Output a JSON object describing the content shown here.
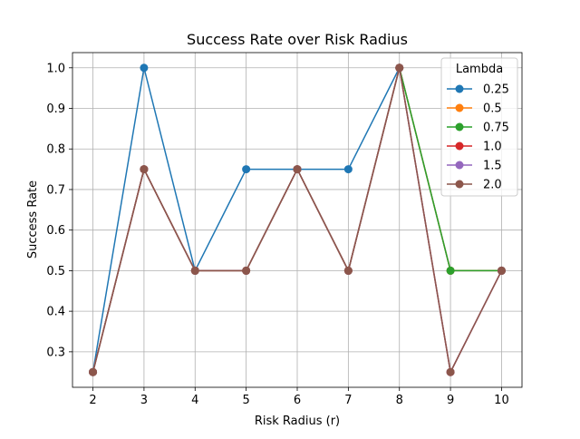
{
  "chart_data": {
    "type": "line",
    "title": "Success Rate over Risk Radius",
    "xlabel": "Risk Radius (r)",
    "ylabel": "Success Rate",
    "x": [
      2,
      3,
      4,
      5,
      6,
      7,
      8,
      9,
      10
    ],
    "xlim": [
      1.6,
      10.4
    ],
    "ylim": [
      0.2125,
      1.0375
    ],
    "xticks": [
      "2",
      "3",
      "4",
      "5",
      "6",
      "7",
      "8",
      "9",
      "10"
    ],
    "yticks": [
      "0.3",
      "0.4",
      "0.5",
      "0.6",
      "0.7",
      "0.8",
      "0.9",
      "1.0"
    ],
    "grid": true,
    "legend": {
      "title": "Lambda",
      "placement": "top-right"
    },
    "series": [
      {
        "name": "0.25",
        "color": "#1f77b4",
        "values": [
          0.25,
          1.0,
          0.5,
          0.75,
          0.75,
          0.75,
          1.0,
          0.5,
          0.5
        ]
      },
      {
        "name": "0.5",
        "color": "#ff7f0e",
        "values": [
          0.25,
          0.75,
          0.5,
          0.5,
          0.75,
          0.5,
          1.0,
          0.5,
          0.5
        ]
      },
      {
        "name": "0.75",
        "color": "#2ca02c",
        "values": [
          0.25,
          0.75,
          0.5,
          0.5,
          0.75,
          0.5,
          1.0,
          0.5,
          0.5
        ]
      },
      {
        "name": "1.0",
        "color": "#d62728",
        "values": [
          0.25,
          0.75,
          0.5,
          0.5,
          0.75,
          0.5,
          1.0,
          0.25,
          0.5
        ]
      },
      {
        "name": "1.5",
        "color": "#9467bd",
        "values": [
          0.25,
          0.75,
          0.5,
          0.5,
          0.75,
          0.5,
          1.0,
          0.25,
          0.5
        ]
      },
      {
        "name": "2.0",
        "color": "#8c564b",
        "values": [
          0.25,
          0.75,
          0.5,
          0.5,
          0.75,
          0.5,
          1.0,
          0.25,
          0.5
        ]
      }
    ]
  }
}
